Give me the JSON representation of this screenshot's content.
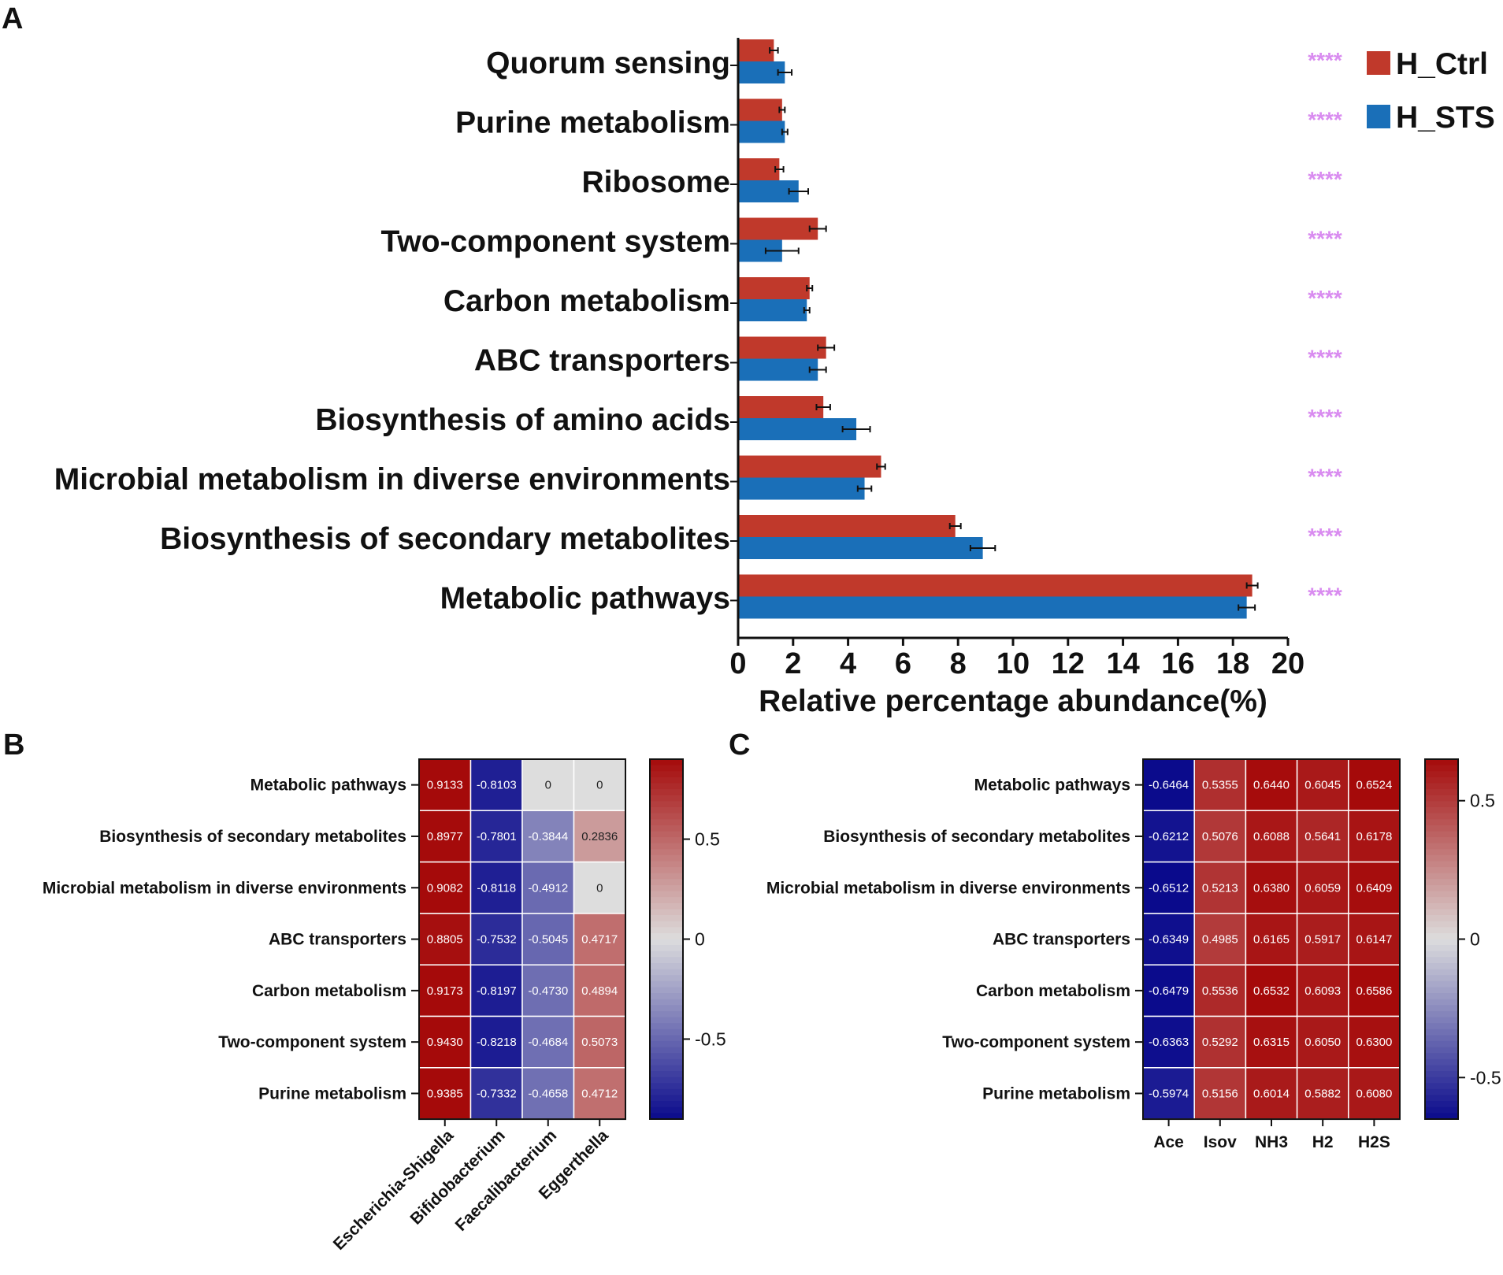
{
  "panel_labels": {
    "a": "A",
    "b": "B",
    "c": "C"
  },
  "colors": {
    "ctrl": "#c0392b",
    "sts": "#1a6fb8",
    "stars": "#d98cf0",
    "heat_neg": "#0a0a8c",
    "heat_mid": "#dddddd",
    "heat_pos": "#a50a0a"
  },
  "chart_data": [
    {
      "type": "bar",
      "orientation": "horizontal",
      "panel": "A",
      "categories": [
        "Quorum sensing",
        "Purine metabolism",
        "Ribosome",
        "Two-component system",
        "Carbon metabolism",
        "ABC transporters",
        "Biosynthesis of amino acids",
        "Microbial metabolism in diverse environments",
        "Biosynthesis of secondary metabolites",
        "Metabolic pathways"
      ],
      "series": [
        {
          "name": "H_Ctrl",
          "values": [
            1.3,
            1.6,
            1.5,
            2.9,
            2.6,
            3.2,
            3.1,
            5.2,
            7.9,
            18.7
          ],
          "errors": [
            0.15,
            0.1,
            0.15,
            0.3,
            0.1,
            0.3,
            0.25,
            0.15,
            0.2,
            0.2
          ]
        },
        {
          "name": "H_STS",
          "values": [
            1.7,
            1.7,
            2.2,
            1.6,
            2.5,
            2.9,
            4.3,
            4.6,
            8.9,
            18.5
          ],
          "errors": [
            0.25,
            0.1,
            0.35,
            0.6,
            0.1,
            0.3,
            0.5,
            0.25,
            0.45,
            0.3
          ]
        }
      ],
      "significance": [
        "****",
        "****",
        "****",
        "****",
        "****",
        "****",
        "****",
        "****",
        "****",
        "****"
      ],
      "xlabel": "Relative percentage abundance(%)",
      "xlim": [
        0,
        20
      ],
      "xticks": [
        "0",
        "2",
        "4",
        "6",
        "8",
        "10",
        "12",
        "14",
        "16",
        "18",
        "20"
      ],
      "legend": [
        "H_Ctrl",
        "H_STS"
      ],
      "legend_position": "top-right"
    },
    {
      "type": "heatmap",
      "panel": "B",
      "rows": [
        "Metabolic pathways",
        "Biosynthesis of secondary metabolites",
        "Microbial metabolism in diverse environments",
        "ABC transporters",
        "Carbon metabolism",
        "Two-component system",
        "Purine metabolism"
      ],
      "columns": [
        "Escherichia-Shigella",
        "Bifidobacterium",
        "Faecalibacterium",
        "Eggerthella"
      ],
      "values": [
        [
          0.9133,
          -0.8103,
          0,
          0
        ],
        [
          0.8977,
          -0.7801,
          -0.3844,
          0.2836
        ],
        [
          0.9082,
          -0.8118,
          -0.4912,
          0
        ],
        [
          0.8805,
          -0.7532,
          -0.5045,
          0.4717
        ],
        [
          0.9173,
          -0.8197,
          -0.473,
          0.4894
        ],
        [
          0.943,
          -0.8218,
          -0.4684,
          0.5073
        ],
        [
          0.9385,
          -0.7332,
          -0.4658,
          0.4712
        ]
      ],
      "labels": [
        [
          "0.9133",
          "-0.8103",
          "0",
          "0"
        ],
        [
          "0.8977",
          "-0.7801",
          "-0.3844",
          "0.2836"
        ],
        [
          "0.9082",
          "-0.8118",
          "-0.4912",
          "0"
        ],
        [
          "0.8805",
          "-0.7532",
          "-0.5045",
          "0.4717"
        ],
        [
          "0.9173",
          "-0.8197",
          "-0.4730",
          "0.4894"
        ],
        [
          "0.9430",
          "-0.8218",
          "-0.4684",
          "0.5073"
        ],
        [
          "0.9385",
          "-0.7332",
          "-0.4658",
          "0.4712"
        ]
      ],
      "colorbar_range": [
        -0.9,
        0.9
      ],
      "colorbar_ticks": [
        "0.5",
        "0",
        "-0.5"
      ]
    },
    {
      "type": "heatmap",
      "panel": "C",
      "rows": [
        "Metabolic pathways",
        "Biosynthesis of secondary metabolites",
        "Microbial metabolism in diverse environments",
        "ABC transporters",
        "Carbon metabolism",
        "Two-component system",
        "Purine metabolism"
      ],
      "columns": [
        "Ace",
        "Isov",
        "NH3",
        "H2",
        "H2S"
      ],
      "values": [
        [
          -0.6464,
          0.5355,
          0.644,
          0.6045,
          0.6524
        ],
        [
          -0.6212,
          0.5076,
          0.6088,
          0.5641,
          0.6178
        ],
        [
          -0.6512,
          0.5213,
          0.638,
          0.6059,
          0.6409
        ],
        [
          -0.6349,
          0.4985,
          0.6165,
          0.5917,
          0.6147
        ],
        [
          -0.6479,
          0.5536,
          0.6532,
          0.6093,
          0.6586
        ],
        [
          -0.6363,
          0.5292,
          0.6315,
          0.605,
          0.63
        ],
        [
          -0.5974,
          0.5156,
          0.6014,
          0.5882,
          0.608
        ]
      ],
      "labels": [
        [
          "-0.6464",
          "0.5355",
          "0.6440",
          "0.6045",
          "0.6524"
        ],
        [
          "-0.6212",
          "0.5076",
          "0.6088",
          "0.5641",
          "0.6178"
        ],
        [
          "-0.6512",
          "0.5213",
          "0.6380",
          "0.6059",
          "0.6409"
        ],
        [
          "-0.6349",
          "0.4985",
          "0.6165",
          "0.5917",
          "0.6147"
        ],
        [
          "-0.6479",
          "0.5536",
          "0.6532",
          "0.6093",
          "0.6586"
        ],
        [
          "-0.6363",
          "0.5292",
          "0.6315",
          "0.6050",
          "0.6300"
        ],
        [
          "-0.5974",
          "0.5156",
          "0.6014",
          "0.5882",
          "0.6080"
        ]
      ],
      "colorbar_range": [
        -0.65,
        0.65
      ],
      "colorbar_ticks": [
        "0.5",
        "0",
        "-0.5"
      ]
    }
  ]
}
